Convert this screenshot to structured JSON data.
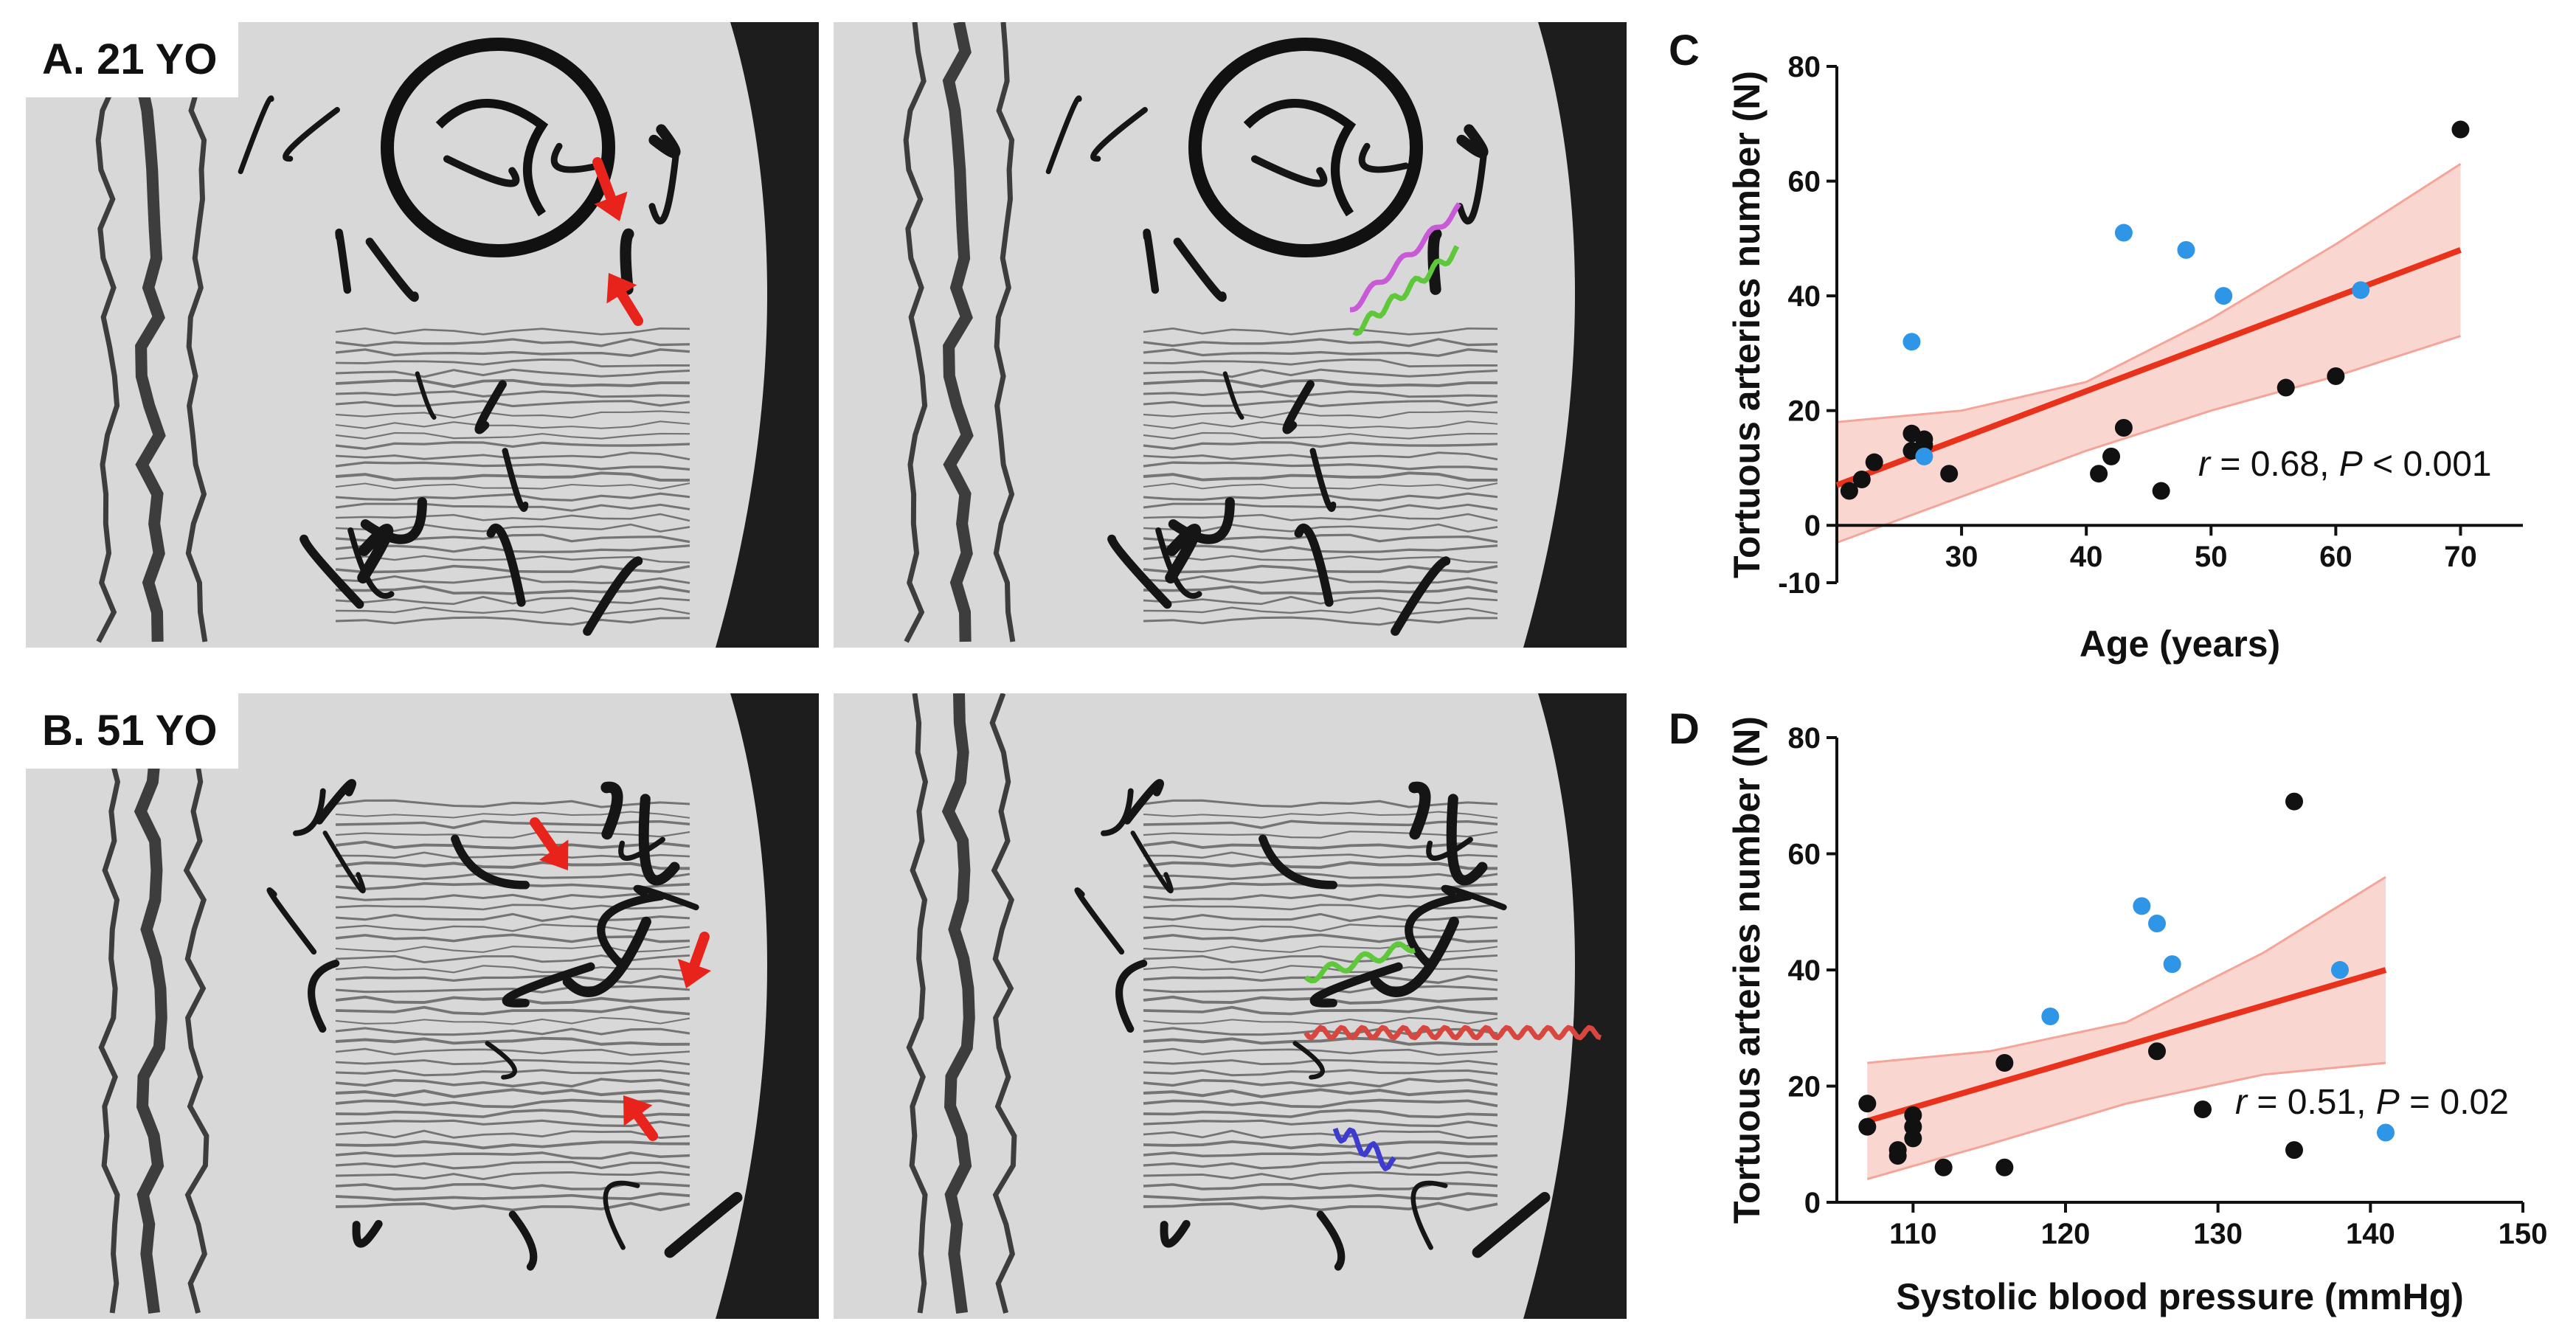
{
  "panels": {
    "a_label": "A. 21 YO",
    "b_label": "B. 51 YO",
    "c_letter": "C",
    "d_letter": "D"
  },
  "colors": {
    "arrow": "#e8231c",
    "trace_magenta": "#c85ad8",
    "trace_green": "#5ec73a",
    "trace_red": "#d8473f",
    "trace_blue": "#3d3ccf",
    "point_black": "#111111",
    "point_blue": "#2f95e6",
    "fit_line": "#e8321c",
    "ci_band": "#f4a59a"
  },
  "chart_data": [
    {
      "type": "scatter",
      "title": "",
      "xlabel": "Age (years)",
      "ylabel": "Tortuous arteries number (N)",
      "xlim": [
        20,
        75
      ],
      "ylim": [
        -10,
        80
      ],
      "xticks": [
        30,
        40,
        50,
        60,
        70
      ],
      "yticks": [
        -10,
        0,
        20,
        40,
        60,
        80
      ],
      "annotation": {
        "r_sym": "r",
        "r_text": " = 0.68, ",
        "p_sym": "P",
        "p_text": " < 0.001"
      },
      "series": [
        {
          "color": "black",
          "points": [
            [
              21,
              6
            ],
            [
              22,
              8
            ],
            [
              23,
              11
            ],
            [
              26,
              16
            ],
            [
              26,
              13
            ],
            [
              27,
              14
            ],
            [
              27,
              15
            ],
            [
              29,
              9
            ],
            [
              41,
              9
            ],
            [
              42,
              12
            ],
            [
              43,
              17
            ],
            [
              46,
              6
            ],
            [
              56,
              24
            ],
            [
              60,
              26
            ],
            [
              70,
              69
            ]
          ]
        },
        {
          "color": "blue",
          "points": [
            [
              26,
              32
            ],
            [
              27,
              12
            ],
            [
              43,
              51
            ],
            [
              48,
              48
            ],
            [
              51,
              40
            ],
            [
              62,
              41
            ]
          ]
        }
      ],
      "fit": {
        "x": [
          20,
          70
        ],
        "y": [
          7,
          48
        ]
      },
      "ci": {
        "x": [
          20,
          30,
          40,
          50,
          60,
          70
        ],
        "lower": [
          -3,
          5,
          13,
          20,
          26,
          33
        ],
        "upper": [
          18,
          20,
          25,
          36,
          49,
          63
        ]
      }
    },
    {
      "type": "scatter",
      "title": "",
      "xlabel": "Systolic blood pressure (mmHg)",
      "ylabel": "Tortuous arteries number (N)",
      "xlim": [
        105,
        150
      ],
      "ylim": [
        0,
        80
      ],
      "xticks": [
        110,
        120,
        130,
        140,
        150
      ],
      "yticks": [
        0,
        20,
        40,
        60,
        80
      ],
      "annotation": {
        "r_sym": "r",
        "r_text": " = 0.51, ",
        "p_sym": "P",
        "p_text": " = 0.02"
      },
      "series": [
        {
          "color": "black",
          "points": [
            [
              107,
              17
            ],
            [
              107,
              13
            ],
            [
              109,
              9
            ],
            [
              109,
              8
            ],
            [
              110,
              15
            ],
            [
              110,
              13
            ],
            [
              110,
              11
            ],
            [
              112,
              6
            ],
            [
              116,
              24
            ],
            [
              116,
              6
            ],
            [
              126,
              26
            ],
            [
              129,
              16
            ],
            [
              135,
              69
            ],
            [
              135,
              9
            ]
          ]
        },
        {
          "color": "blue",
          "points": [
            [
              119,
              32
            ],
            [
              125,
              51
            ],
            [
              126,
              48
            ],
            [
              127,
              41
            ],
            [
              138,
              40
            ],
            [
              141,
              12
            ]
          ]
        }
      ],
      "fit": {
        "x": [
          107,
          141
        ],
        "y": [
          14,
          40
        ]
      },
      "ci": {
        "x": [
          107,
          115,
          124,
          133,
          141
        ],
        "lower": [
          4,
          10,
          17,
          22,
          24
        ],
        "upper": [
          24,
          26,
          31,
          43,
          56
        ]
      }
    }
  ]
}
